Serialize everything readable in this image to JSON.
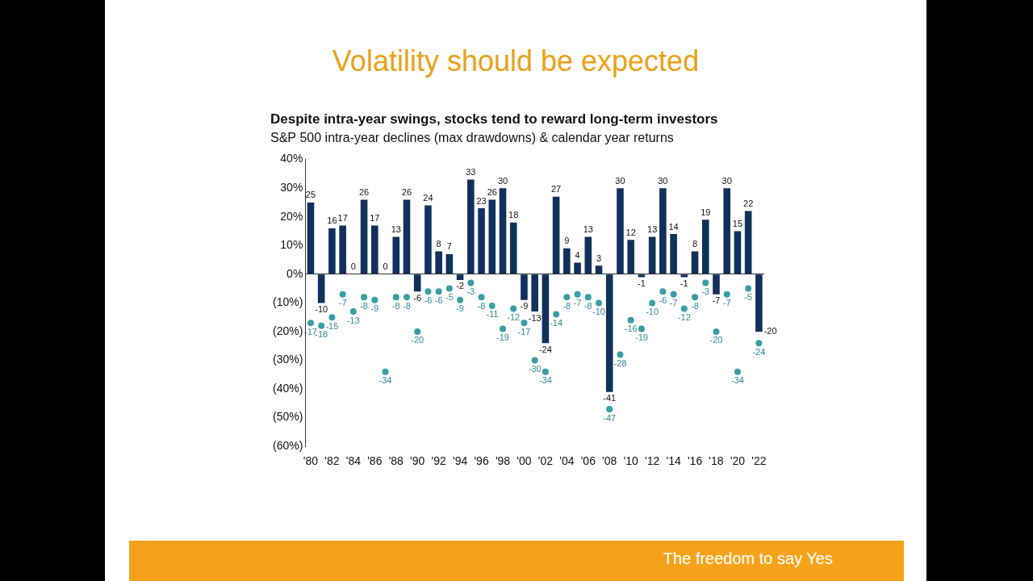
{
  "slide_title": "Volatility should be expected",
  "footer": "The freedom to say Yes",
  "chart_data": {
    "type": "bar",
    "title": "Despite intra-year swings, stocks tend to reward long-term investors",
    "subtitle": "S&P 500 intra-year declines (max drawdowns) & calendar year returns",
    "categories": [
      "'80",
      null,
      "'82",
      null,
      "'84",
      null,
      "'86",
      null,
      "'88",
      null,
      "'90",
      null,
      "'92",
      null,
      "'94",
      null,
      "'96",
      null,
      "'98",
      null,
      "'00",
      null,
      "'02",
      null,
      "'04",
      null,
      "'06",
      null,
      "'08",
      null,
      "'10",
      null,
      "'12",
      null,
      "'14",
      null,
      "'16",
      null,
      "'18",
      null,
      "'20",
      null,
      "'22"
    ],
    "series": [
      {
        "type": "bar",
        "color": "#12305c",
        "values": [
          25,
          -10,
          16,
          17,
          0,
          26,
          17,
          0,
          13,
          26,
          -6,
          24,
          8,
          7,
          -2,
          33,
          23,
          26,
          30,
          18,
          -9,
          -13,
          -24,
          27,
          9,
          4,
          13,
          3,
          -41,
          30,
          12,
          -1,
          13,
          30,
          14,
          -1,
          8,
          19,
          -7,
          30,
          15,
          22,
          -20
        ]
      },
      {
        "type": "scatter",
        "color": "#3a9ea6",
        "marker": "circle",
        "values": [
          -17,
          -18,
          -15,
          -7,
          -13,
          -8,
          -9,
          -34,
          -8,
          -8,
          -20,
          -6,
          -6,
          -5,
          -9,
          -3,
          -8,
          -11,
          -19,
          -12,
          -17,
          -30,
          -34,
          -14,
          -8,
          -7,
          -8,
          -10,
          -47,
          -28,
          -16,
          -19,
          -10,
          -6,
          -7,
          -12,
          -8,
          -3,
          -20,
          -7,
          -34,
          -5,
          -24
        ]
      }
    ],
    "ylim": [
      -60,
      40
    ],
    "yticks": [
      {
        "value": -60,
        "label": "(60%)"
      },
      {
        "value": -50,
        "label": "(50%)"
      },
      {
        "value": -40,
        "label": "(40%)"
      },
      {
        "value": -30,
        "label": "(30%)"
      },
      {
        "value": -20,
        "label": "(20%)"
      },
      {
        "value": -10,
        "label": "(10%)"
      },
      {
        "value": 0,
        "label": "0%"
      },
      {
        "value": 10,
        "label": "10%"
      },
      {
        "value": 20,
        "label": "20%"
      },
      {
        "value": 30,
        "label": "30%"
      },
      {
        "value": 40,
        "label": "40%"
      }
    ],
    "grid": false,
    "data_labels": true
  }
}
